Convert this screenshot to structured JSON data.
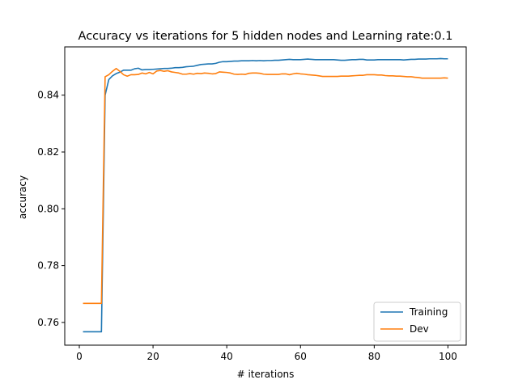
{
  "chart_data": {
    "type": "line",
    "title": "Accuracy vs iterations for 5 hidden nodes and Learning rate:0.1",
    "xlabel": "# iterations",
    "ylabel": "accuracy",
    "xlim": [
      -3.95,
      104.95
    ],
    "ylim": [
      0.752,
      0.857
    ],
    "xticks": [
      0,
      20,
      40,
      60,
      80,
      100
    ],
    "yticks": [
      0.76,
      0.78,
      0.8,
      0.82,
      0.84
    ],
    "xtick_labels": [
      "0",
      "20",
      "40",
      "60",
      "80",
      "100"
    ],
    "ytick_labels": [
      "0.76",
      "0.78",
      "0.80",
      "0.82",
      "0.84"
    ],
    "grid": false,
    "legend_position": "lower-right",
    "series": [
      {
        "name": "Training",
        "color": "#1f77b4",
        "x": [
          1,
          2,
          3,
          4,
          5,
          6,
          7,
          8,
          9,
          10,
          11,
          12,
          13,
          14,
          15,
          16,
          17,
          18,
          19,
          20,
          21,
          22,
          23,
          24,
          25,
          26,
          27,
          28,
          29,
          30,
          31,
          32,
          33,
          34,
          35,
          36,
          37,
          38,
          39,
          40,
          41,
          42,
          43,
          44,
          45,
          46,
          47,
          48,
          49,
          50,
          51,
          52,
          53,
          54,
          55,
          56,
          57,
          58,
          59,
          60,
          61,
          62,
          63,
          64,
          65,
          66,
          67,
          68,
          69,
          70,
          71,
          72,
          73,
          74,
          75,
          76,
          77,
          78,
          79,
          80,
          81,
          82,
          83,
          84,
          85,
          86,
          87,
          88,
          89,
          90,
          91,
          92,
          93,
          94,
          95,
          96,
          97,
          98,
          99,
          100
        ],
        "y": [
          0.7567,
          0.7567,
          0.7567,
          0.7567,
          0.7567,
          0.7567,
          0.84,
          0.8455,
          0.8468,
          0.8476,
          0.8481,
          0.8488,
          0.8488,
          0.8488,
          0.8493,
          0.8495,
          0.8489,
          0.849,
          0.849,
          0.8491,
          0.8492,
          0.8493,
          0.8494,
          0.8494,
          0.8495,
          0.8497,
          0.8497,
          0.8498,
          0.85,
          0.8501,
          0.8502,
          0.8505,
          0.8508,
          0.8509,
          0.851,
          0.851,
          0.8512,
          0.8516,
          0.8518,
          0.8518,
          0.8519,
          0.852,
          0.852,
          0.8521,
          0.8521,
          0.8521,
          0.8522,
          0.8521,
          0.8522,
          0.8521,
          0.8522,
          0.8522,
          0.8523,
          0.8523,
          0.8524,
          0.8525,
          0.8526,
          0.8525,
          0.8525,
          0.8525,
          0.8526,
          0.8527,
          0.8526,
          0.8525,
          0.8525,
          0.8525,
          0.8525,
          0.8525,
          0.8525,
          0.8524,
          0.8523,
          0.8523,
          0.8524,
          0.8525,
          0.8525,
          0.8526,
          0.8526,
          0.8524,
          0.8524,
          0.8524,
          0.8525,
          0.8525,
          0.8525,
          0.8525,
          0.8525,
          0.8525,
          0.8525,
          0.8524,
          0.8525,
          0.8526,
          0.8526,
          0.8527,
          0.8527,
          0.8527,
          0.8528,
          0.8528,
          0.8528,
          0.8529,
          0.8528,
          0.8528
        ]
      },
      {
        "name": "Dev",
        "color": "#ff7f0e",
        "x": [
          1,
          2,
          3,
          4,
          5,
          6,
          7,
          8,
          9,
          10,
          11,
          12,
          13,
          14,
          15,
          16,
          17,
          18,
          19,
          20,
          21,
          22,
          23,
          24,
          25,
          26,
          27,
          28,
          29,
          30,
          31,
          32,
          33,
          34,
          35,
          36,
          37,
          38,
          39,
          40,
          41,
          42,
          43,
          44,
          45,
          46,
          47,
          48,
          49,
          50,
          51,
          52,
          53,
          54,
          55,
          56,
          57,
          58,
          59,
          60,
          61,
          62,
          63,
          64,
          65,
          66,
          67,
          68,
          69,
          70,
          71,
          72,
          73,
          74,
          75,
          76,
          77,
          78,
          79,
          80,
          81,
          82,
          83,
          84,
          85,
          86,
          87,
          88,
          89,
          90,
          91,
          92,
          93,
          94,
          95,
          96,
          97,
          98,
          99,
          100
        ],
        "y": [
          0.7667,
          0.7667,
          0.7667,
          0.7667,
          0.7667,
          0.7667,
          0.8465,
          0.8472,
          0.8484,
          0.8494,
          0.8484,
          0.8472,
          0.8467,
          0.8472,
          0.8472,
          0.8473,
          0.8478,
          0.8475,
          0.848,
          0.8475,
          0.8485,
          0.8487,
          0.8484,
          0.8486,
          0.8482,
          0.848,
          0.8478,
          0.8474,
          0.8474,
          0.8476,
          0.8474,
          0.8477,
          0.8476,
          0.8478,
          0.8477,
          0.8475,
          0.8476,
          0.8482,
          0.8481,
          0.848,
          0.8478,
          0.8474,
          0.8473,
          0.8474,
          0.8473,
          0.8477,
          0.8478,
          0.8478,
          0.8477,
          0.8474,
          0.8473,
          0.8473,
          0.8473,
          0.8473,
          0.8475,
          0.8475,
          0.8472,
          0.8475,
          0.8477,
          0.8475,
          0.8474,
          0.8472,
          0.8471,
          0.847,
          0.8468,
          0.8466,
          0.8466,
          0.8466,
          0.8466,
          0.8466,
          0.8467,
          0.8467,
          0.8467,
          0.8468,
          0.8469,
          0.847,
          0.847,
          0.8472,
          0.8472,
          0.8472,
          0.8471,
          0.8471,
          0.8469,
          0.8468,
          0.8468,
          0.8467,
          0.8467,
          0.8466,
          0.8465,
          0.8465,
          0.8463,
          0.8462,
          0.846,
          0.846,
          0.846,
          0.846,
          0.846,
          0.846,
          0.8461,
          0.846
        ]
      }
    ]
  }
}
